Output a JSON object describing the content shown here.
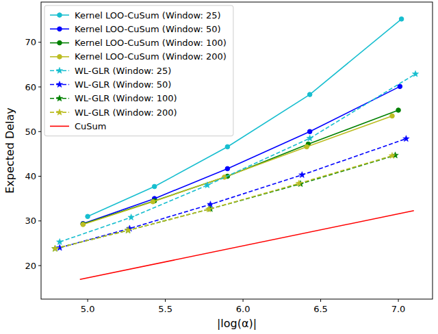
{
  "chart_data": {
    "type": "line",
    "x_label": "|log(α)|",
    "y_label": "Expected Delay",
    "xlim": [
      4.7,
      7.22
    ],
    "ylim": [
      12.5,
      79
    ],
    "xticks": [
      {
        "value": 5,
        "label": "5.0"
      },
      {
        "value": 5.5,
        "label": "5.5"
      },
      {
        "value": 6,
        "label": "6.0"
      },
      {
        "value": 6.5,
        "label": "6.5"
      },
      {
        "value": 7,
        "label": "7.0"
      }
    ],
    "yticks": [
      20,
      30,
      40,
      50,
      60,
      70
    ],
    "grid": false,
    "legend": "upper-left",
    "series": [
      {
        "name": "Kernel LOO-CuSum (Window: 25)",
        "color": "#17becf",
        "marker": "circle",
        "line_style": "solid",
        "x": [
          5.0,
          5.43,
          5.9,
          6.43,
          7.02
        ],
        "values": [
          31,
          37.7,
          46.6,
          58.3,
          75.2
        ]
      },
      {
        "name": "Kernel LOO-CuSum (Window: 50)",
        "color": "#0000ff",
        "marker": "circle",
        "line_style": "solid",
        "x": [
          4.97,
          5.43,
          5.9,
          6.43,
          7.01
        ],
        "values": [
          29.4,
          35,
          41.7,
          50,
          60.1
        ]
      },
      {
        "name": "Kernel LOO-CuSum (Window: 100)",
        "color": "#008000",
        "marker": "circle",
        "line_style": "solid",
        "x": [
          4.97,
          5.43,
          5.9,
          6.42,
          7.0
        ],
        "values": [
          29.3,
          34.5,
          40,
          47.2,
          54.8
        ]
      },
      {
        "name": "Kernel LOO-CuSum (Window: 200)",
        "color": "#bcbd22",
        "marker": "circle",
        "line_style": "solid",
        "x": [
          4.97,
          5.42,
          5.88,
          6.41,
          6.96
        ],
        "values": [
          29.2,
          34.3,
          39.8,
          46.6,
          53.5
        ]
      },
      {
        "name": "WL-GLR (Window: 25)",
        "color": "#17becf",
        "marker": "star",
        "line_style": "dashed",
        "x": [
          4.82,
          5.28,
          5.77,
          6.43,
          7.11
        ],
        "values": [
          25.3,
          30.8,
          38,
          48.5,
          62.9
        ]
      },
      {
        "name": "WL-GLR (Window: 50)",
        "color": "#0000ff",
        "marker": "star",
        "line_style": "dashed",
        "x": [
          4.82,
          5.27,
          5.79,
          6.38,
          7.05
        ],
        "values": [
          24,
          28.3,
          33.7,
          40.3,
          48.4
        ]
      },
      {
        "name": "WL-GLR (Window: 100)",
        "color": "#008000",
        "marker": "star",
        "line_style": "dashed",
        "x": [
          4.79,
          5.26,
          5.79,
          6.37,
          6.98
        ],
        "values": [
          23.8,
          27.9,
          32.7,
          38.3,
          44.7
        ]
      },
      {
        "name": "WL-GLR (Window: 200)",
        "color": "#bcbd22",
        "marker": "star",
        "line_style": "dashed",
        "x": [
          4.79,
          5.26,
          5.78,
          6.36,
          6.96
        ],
        "values": [
          23.8,
          27.9,
          32.6,
          38.4,
          44.6
        ]
      },
      {
        "name": "CuSum",
        "color": "#ff0000",
        "marker": "none",
        "line_style": "solid",
        "x": [
          4.95,
          7.1
        ],
        "values": [
          16.9,
          32.3
        ]
      }
    ]
  }
}
